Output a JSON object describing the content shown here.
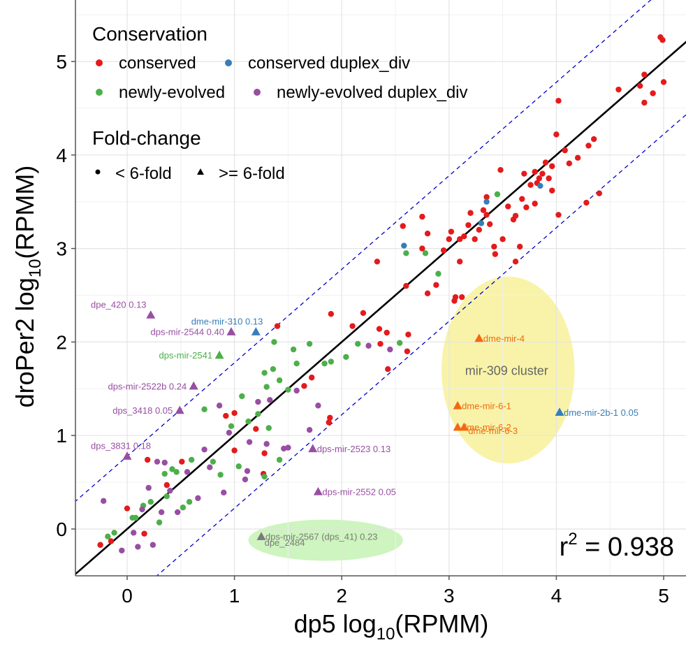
{
  "chart_data": {
    "type": "scatter",
    "title": "",
    "xlabel": {
      "main": "dp5 log",
      "sub": "10",
      "rest": "(RPMM)"
    },
    "ylabel": {
      "main": "droPer2 log",
      "sub": "10",
      "rest": "(RPMM)"
    },
    "xlim": [
      -0.5,
      5.2
    ],
    "ylim": [
      -0.5,
      5.5
    ],
    "xticks": [
      0,
      1,
      2,
      3,
      4,
      5
    ],
    "yticks": [
      0,
      1,
      2,
      3,
      4,
      5
    ],
    "grid": true,
    "legend_placement": "top-left",
    "r2_label": {
      "prefix": "r",
      "sup": "2",
      "rest": " = 0.938"
    },
    "regression_line": {
      "slope": 1,
      "intercept": 0,
      "color": "#000000"
    },
    "fold_lines": [
      {
        "slope": 1,
        "intercept": 0.778,
        "color": "#0000cc",
        "dash": true
      },
      {
        "slope": 1,
        "intercept": -0.778,
        "color": "#0000cc",
        "dash": true
      }
    ],
    "legend": {
      "conservation_title": "Conservation",
      "conservation_items": [
        {
          "label": "conserved",
          "color": "#e41a1c"
        },
        {
          "label": "conserved duplex_div",
          "color": "#377eb8"
        },
        {
          "label": "newly-evolved",
          "color": "#4daf4a"
        },
        {
          "label": "newly-evolved duplex_div",
          "color": "#984ea3"
        }
      ],
      "fold_title": "Fold-change",
      "fold_items": [
        {
          "label": "< 6-fold",
          "shape": "circle"
        },
        {
          "label": ">= 6-fold",
          "shape": "triangle"
        }
      ]
    },
    "colors": {
      "conserved": "#e41a1c",
      "conserved_duplex_div": "#377eb8",
      "newly_evolved": "#4daf4a",
      "newly_evolved_duplex_div": "#984ea3",
      "orange_labels": "#f16913",
      "yellow_ellipse": "#f7f199",
      "green_ellipse": "#c6f2b4"
    },
    "ellipses": [
      {
        "label": "mir-309 cluster",
        "cx": 3.55,
        "cy": 1.7,
        "rx": 0.62,
        "ry": 1.0,
        "color": "#f7f199"
      },
      {
        "label": "",
        "cx": 1.85,
        "cy": -0.12,
        "rx": 0.72,
        "ry": 0.22,
        "color": "#c6f2b4"
      }
    ],
    "series": [
      {
        "name": "conserved",
        "color": "#e41a1c",
        "shape": "circle",
        "points": [
          [
            -0.25,
            -0.17
          ],
          [
            -0.15,
            -0.13
          ],
          [
            0.0,
            0.22
          ],
          [
            0.16,
            -0.05
          ],
          [
            0.19,
            0.74
          ],
          [
            0.37,
            0.47
          ],
          [
            0.51,
            0.72
          ],
          [
            0.92,
            1.21
          ],
          [
            1.0,
            1.24
          ],
          [
            1.2,
            1.07
          ],
          [
            1.28,
            0.81
          ],
          [
            1.27,
            0.59
          ],
          [
            1.0,
            0.84
          ],
          [
            1.4,
            2.17
          ],
          [
            1.72,
            1.62
          ],
          [
            1.89,
            1.19
          ],
          [
            1.88,
            1.14
          ],
          [
            1.65,
            1.53
          ],
          [
            1.9,
            2.3
          ],
          [
            2.1,
            2.17
          ],
          [
            2.2,
            2.31
          ],
          [
            2.35,
            2.14
          ],
          [
            2.36,
            1.98
          ],
          [
            2.42,
            2.1
          ],
          [
            2.43,
            1.71
          ],
          [
            2.33,
            2.86
          ],
          [
            2.57,
            3.24
          ],
          [
            2.6,
            2.6
          ],
          [
            2.62,
            2.08
          ],
          [
            2.61,
            1.9
          ],
          [
            2.75,
            3.34
          ],
          [
            2.8,
            3.16
          ],
          [
            2.75,
            3.0
          ],
          [
            2.8,
            2.52
          ],
          [
            2.88,
            2.61
          ],
          [
            2.95,
            2.98
          ],
          [
            3.0,
            3.1
          ],
          [
            3.02,
            3.18
          ],
          [
            3.05,
            2.44
          ],
          [
            3.06,
            2.48
          ],
          [
            3.12,
            2.48
          ],
          [
            3.1,
            2.86
          ],
          [
            3.1,
            3.1
          ],
          [
            3.14,
            3.13
          ],
          [
            3.18,
            3.25
          ],
          [
            3.2,
            3.38
          ],
          [
            3.24,
            3.1
          ],
          [
            3.28,
            3.2
          ],
          [
            3.32,
            3.41
          ],
          [
            3.35,
            3.55
          ],
          [
            3.38,
            3.26
          ],
          [
            3.42,
            3.02
          ],
          [
            3.43,
            2.94
          ],
          [
            3.48,
            3.84
          ],
          [
            3.5,
            3.1
          ],
          [
            3.55,
            3.45
          ],
          [
            3.6,
            3.31
          ],
          [
            3.62,
            3.35
          ],
          [
            3.68,
            3.53
          ],
          [
            3.7,
            3.8
          ],
          [
            3.72,
            3.44
          ],
          [
            3.76,
            3.68
          ],
          [
            3.8,
            3.82
          ],
          [
            3.82,
            3.7
          ],
          [
            3.84,
            3.75
          ],
          [
            3.87,
            3.8
          ],
          [
            3.9,
            3.92
          ],
          [
            3.93,
            3.75
          ],
          [
            3.96,
            3.88
          ],
          [
            4.02,
            4.58
          ],
          [
            4.0,
            4.22
          ],
          [
            4.08,
            4.05
          ],
          [
            4.12,
            3.91
          ],
          [
            4.2,
            3.97
          ],
          [
            4.28,
            3.49
          ],
          [
            4.3,
            4.1
          ],
          [
            4.35,
            4.17
          ],
          [
            4.4,
            3.59
          ],
          [
            4.58,
            4.7
          ],
          [
            4.78,
            4.74
          ],
          [
            4.82,
            4.56
          ],
          [
            4.9,
            4.66
          ],
          [
            4.97,
            5.26
          ],
          [
            4.99,
            5.23
          ],
          [
            5.0,
            4.78
          ],
          [
            4.82,
            4.86
          ],
          [
            3.66,
            3.02
          ],
          [
            3.8,
            3.48
          ],
          [
            4.02,
            3.36
          ],
          [
            3.96,
            3.62
          ],
          [
            3.62,
            2.86
          ],
          [
            3.35,
            3.36
          ]
        ]
      },
      {
        "name": "conserved duplex_div",
        "color": "#377eb8",
        "shape": "circle",
        "points": [
          [
            2.58,
            3.03
          ],
          [
            3.3,
            3.27
          ],
          [
            3.35,
            3.5
          ],
          [
            3.85,
            3.67
          ]
        ]
      },
      {
        "name": "newly-evolved",
        "color": "#4daf4a",
        "shape": "circle",
        "points": [
          [
            -0.18,
            -0.08
          ],
          [
            -0.12,
            -0.04
          ],
          [
            0.05,
            0.12
          ],
          [
            0.08,
            0.12
          ],
          [
            0.15,
            0.25
          ],
          [
            0.22,
            0.29
          ],
          [
            0.3,
            0.07
          ],
          [
            0.37,
            0.35
          ],
          [
            0.42,
            0.64
          ],
          [
            0.46,
            0.61
          ],
          [
            0.52,
            0.23
          ],
          [
            0.58,
            0.29
          ],
          [
            0.6,
            0.74
          ],
          [
            0.72,
            1.28
          ],
          [
            0.8,
            0.72
          ],
          [
            0.87,
            0.58
          ],
          [
            0.97,
            1.1
          ],
          [
            1.04,
            0.67
          ],
          [
            1.07,
            1.42
          ],
          [
            1.13,
            1.15
          ],
          [
            1.22,
            1.23
          ],
          [
            1.28,
            1.67
          ],
          [
            1.3,
            1.52
          ],
          [
            1.32,
            1.08
          ],
          [
            1.36,
            1.71
          ],
          [
            1.42,
            1.59
          ],
          [
            1.5,
            1.49
          ],
          [
            1.55,
            1.92
          ],
          [
            1.58,
            1.77
          ],
          [
            1.7,
            1.98
          ],
          [
            1.84,
            1.77
          ],
          [
            1.9,
            1.79
          ],
          [
            2.04,
            1.84
          ],
          [
            2.15,
            1.98
          ],
          [
            2.54,
            1.99
          ],
          [
            2.6,
            2.95
          ],
          [
            2.78,
            2.95
          ],
          [
            2.9,
            2.73
          ],
          [
            3.45,
            3.58
          ],
          [
            0.35,
            0.59
          ],
          [
            1.28,
            0.56
          ],
          [
            1.42,
            0.74
          ],
          [
            1.37,
            2.0
          ]
        ]
      },
      {
        "name": "newly-evolved duplex_div",
        "color": "#984ea3",
        "shape": "circle",
        "points": [
          [
            -0.22,
            0.3
          ],
          [
            -0.05,
            -0.23
          ],
          [
            0.06,
            -0.04
          ],
          [
            0.1,
            -0.19
          ],
          [
            0.14,
            0.21
          ],
          [
            0.2,
            0.44
          ],
          [
            0.28,
            0.72
          ],
          [
            0.35,
            0.71
          ],
          [
            0.4,
            0.41
          ],
          [
            0.47,
            0.18
          ],
          [
            0.56,
            0.61
          ],
          [
            0.66,
            0.33
          ],
          [
            0.72,
            0.85
          ],
          [
            0.77,
            0.66
          ],
          [
            0.86,
            1.32
          ],
          [
            0.9,
            0.39
          ],
          [
            0.95,
            1.03
          ],
          [
            1.1,
            0.53
          ],
          [
            1.14,
            0.93
          ],
          [
            1.22,
            1.36
          ],
          [
            1.3,
            0.91
          ],
          [
            1.33,
            1.38
          ],
          [
            1.46,
            0.86
          ],
          [
            1.58,
            1.48
          ],
          [
            1.7,
            1.06
          ],
          [
            1.78,
            1.32
          ],
          [
            2.25,
            1.96
          ],
          [
            2.45,
            1.92
          ],
          [
            0.24,
            -0.17
          ],
          [
            1.5,
            0.87
          ],
          [
            0.32,
            0.18
          ],
          [
            1.12,
            0.62
          ]
        ]
      }
    ],
    "triangles": [
      {
        "label": "dpe_420 0.13",
        "x": 0.22,
        "y": 2.29,
        "color": "#984ea3"
      },
      {
        "label": "dps-mir-2544 0.40",
        "x": 0.97,
        "y": 2.11,
        "color": "#984ea3"
      },
      {
        "label": "dme-mir-310 0.13",
        "x": 1.2,
        "y": 2.11,
        "color": "#377eb8"
      },
      {
        "label": "dps-mir-2541",
        "x": 0.86,
        "y": 1.86,
        "color": "#4daf4a"
      },
      {
        "label": "dps-mir-2522b 0.24",
        "x": 0.62,
        "y": 1.53,
        "color": "#984ea3"
      },
      {
        "label": "dps_3418 0.05",
        "x": 0.49,
        "y": 1.27,
        "color": "#984ea3"
      },
      {
        "label": "dps_3831 0.18",
        "x": 0.0,
        "y": 0.78,
        "color": "#984ea3"
      },
      {
        "label": "dps-mir-2523 0.13",
        "x": 1.73,
        "y": 0.86,
        "color": "#984ea3"
      },
      {
        "label": "dps-mir-2552 0.05",
        "x": 1.78,
        "y": 0.4,
        "color": "#984ea3"
      },
      {
        "label": "dps-mir-2567 (dps_41) 0.23",
        "x": 1.25,
        "y": -0.08,
        "color": "#7a7a7a"
      },
      {
        "label": "dme-mir-4",
        "x": 3.28,
        "y": 2.04,
        "color": "#f16913"
      },
      {
        "label": "dme-mir-6-1",
        "x": 3.08,
        "y": 1.32,
        "color": "#f16913"
      },
      {
        "label": "dme-mir-6-2",
        "x": 3.08,
        "y": 1.09,
        "color": "#f16913"
      },
      {
        "label": "dme-mir-6-3",
        "x": 3.14,
        "y": 1.09,
        "color": "#f16913"
      },
      {
        "label": "dme-mir-2b-1 0.05",
        "x": 4.03,
        "y": 1.25,
        "color": "#377eb8"
      }
    ],
    "extra_labels": [
      {
        "label": "dpe_2484",
        "x": 1.28,
        "y": -0.18,
        "color": "#7a7a7a"
      }
    ]
  }
}
